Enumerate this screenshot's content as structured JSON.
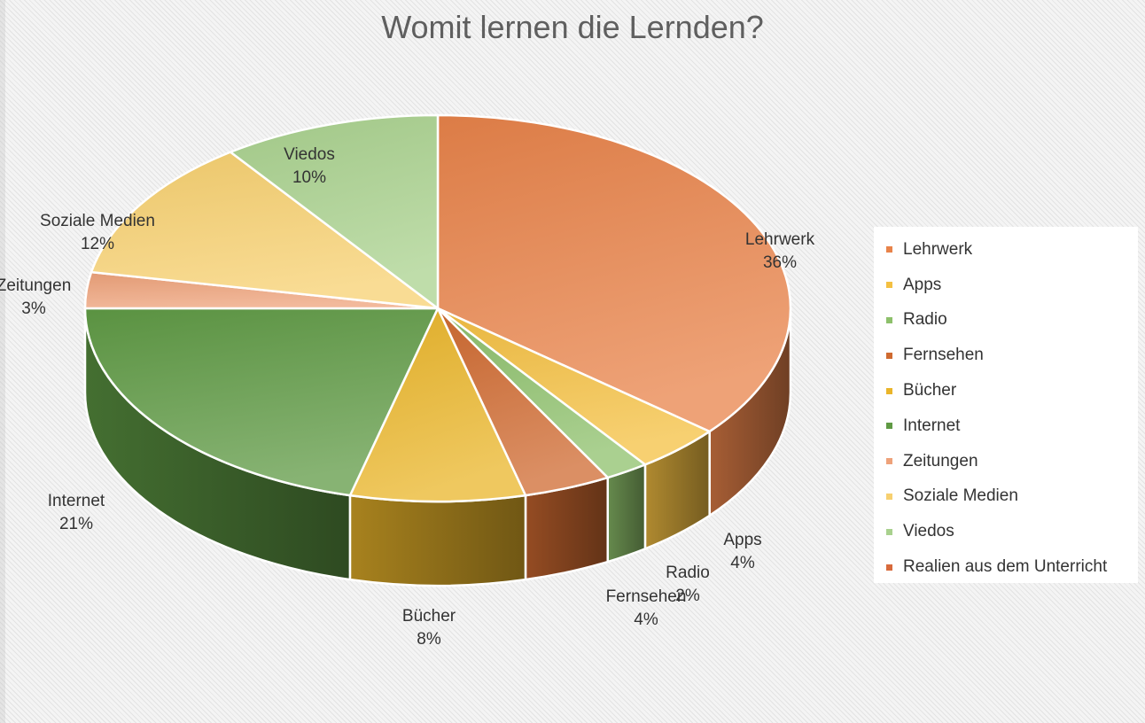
{
  "chart_data": {
    "type": "pie",
    "title": "Womit lernen die Lernden?",
    "slices": [
      {
        "label": "Lehrwerk",
        "value": 36,
        "value_label": "36%",
        "color": "#e8834a"
      },
      {
        "label": "Apps",
        "value": 4,
        "value_label": "4%",
        "color": "#f4c042"
      },
      {
        "label": "Radio",
        "value": 2,
        "value_label": "2%",
        "color": "#8dc06b"
      },
      {
        "label": "Fernsehen",
        "value": 4,
        "value_label": "4%",
        "color": "#cf6a30"
      },
      {
        "label": "Bücher",
        "value": 8,
        "value_label": "8%",
        "color": "#eab52a"
      },
      {
        "label": "Internet",
        "value": 21,
        "value_label": "21%",
        "color": "#5f9a44"
      },
      {
        "label": "Zeitungen",
        "value": 3,
        "value_label": "3%",
        "color": "#eea27a"
      },
      {
        "label": "Soziale Medien",
        "value": 12,
        "value_label": "12%",
        "color": "#f7d070"
      },
      {
        "label": "Viedos",
        "value": 10,
        "value_label": "10%",
        "color": "#a9d18e"
      },
      {
        "label": "Realien aus dem Unterricht",
        "value": 0,
        "value_label": "",
        "color": "#d86a3c"
      }
    ],
    "legend_position": "right",
    "style": "3d-pie"
  }
}
